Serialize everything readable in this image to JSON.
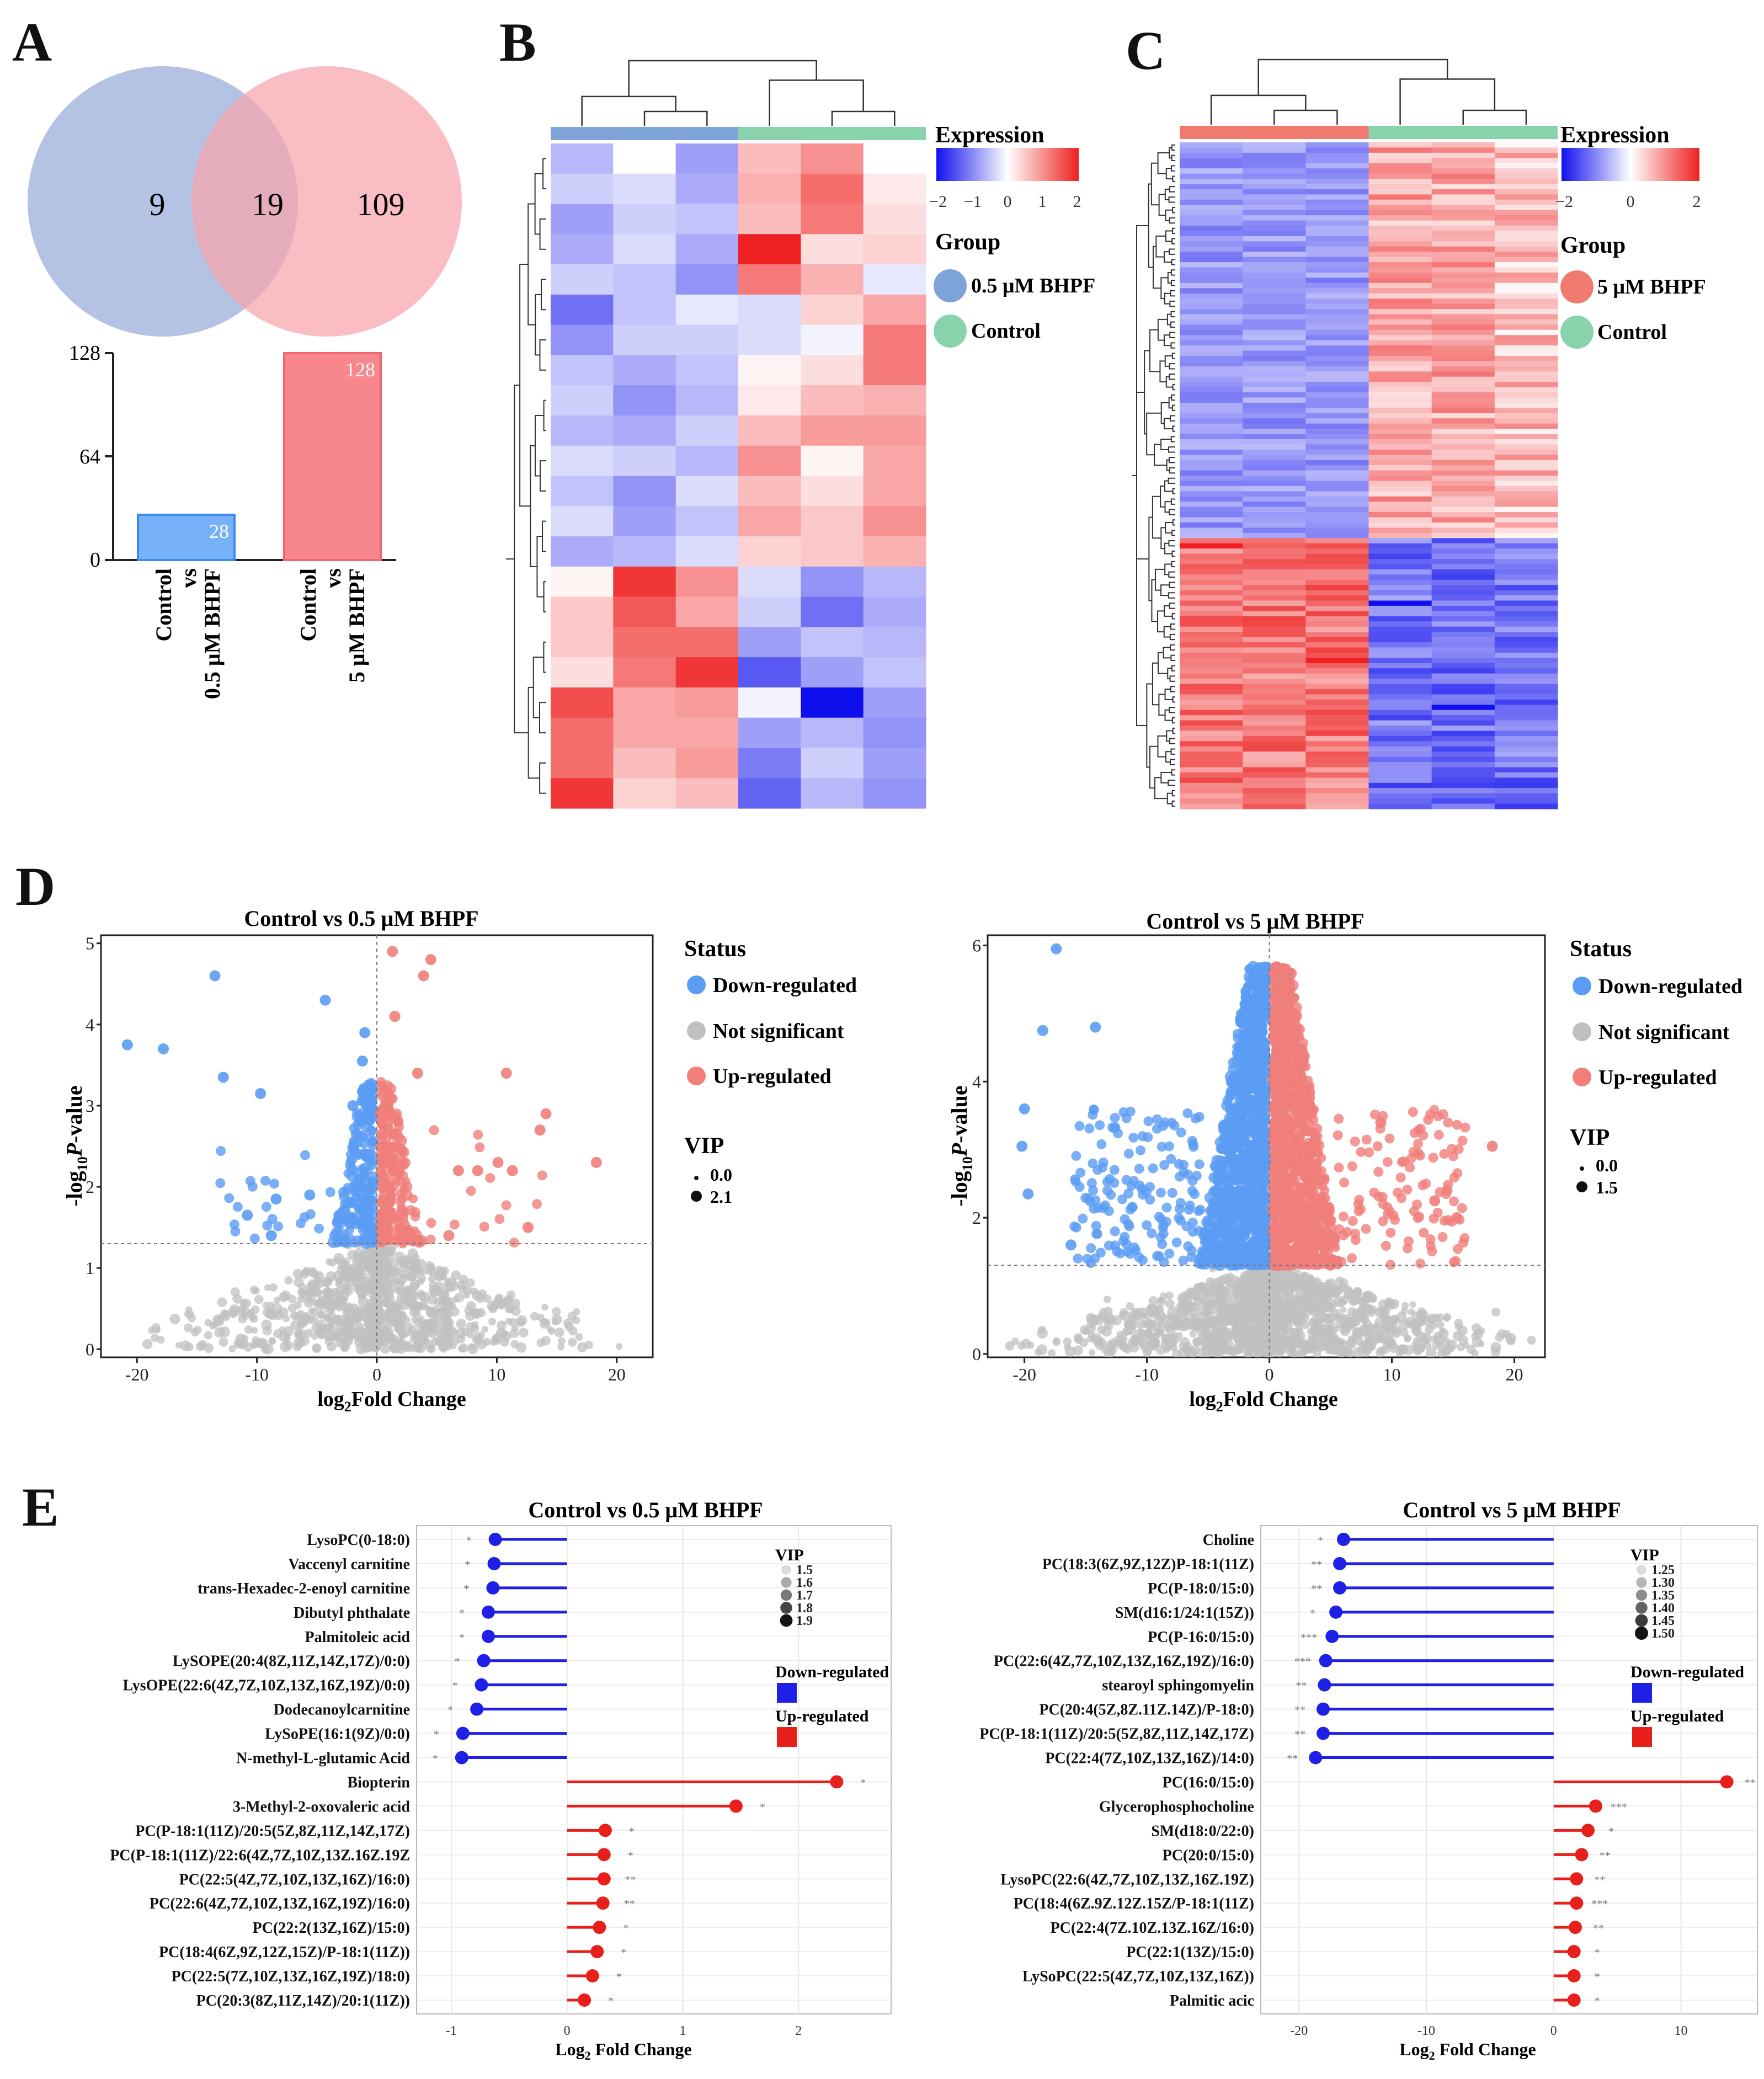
{
  "colors": {
    "blue": "#5b9cf4",
    "red": "#f07e7a",
    "grey": "#c0c0c0",
    "venn_blue": "#a7b7df",
    "venn_pink": "#f8a3ac",
    "bar_blue": "#77b1f7",
    "bar_red": "#f8878d",
    "group_blue": "#7ea3d8",
    "group_green": "#88d3ab",
    "group_red": "#f07a70",
    "lollipop_blue": "#1f20e5",
    "lollipop_red": "#e8201c"
  },
  "panel_labels": [
    "A",
    "B",
    "C",
    "D",
    "E"
  ],
  "panelA": {
    "venn": {
      "left_only": "9",
      "overlap": "19",
      "right_only": "109"
    },
    "bar": {
      "ticks": [
        "0",
        "64",
        "128"
      ],
      "max": 128,
      "bars": [
        {
          "value": 28,
          "label_text": "28",
          "cat_line1": "Control",
          "cat_line2": "vs",
          "cat_line3": "0.5 μM BHPF"
        },
        {
          "value": 128,
          "label_text": "128",
          "cat_line1": "Control",
          "cat_line2": "vs",
          "cat_line3": "5 μM BHPF"
        }
      ]
    }
  },
  "panelB": {
    "legend": {
      "expression": "Expression",
      "ticks": [
        "−2",
        "−1",
        "0",
        "1",
        "2"
      ],
      "group": "Group",
      "group1": "0.5 μM BHPF",
      "group2": "Control"
    }
  },
  "panelC": {
    "legend": {
      "expression": "Expression",
      "ticks": [
        "−2",
        "0",
        "2"
      ],
      "group": "Group",
      "group1": "5 μM BHPF",
      "group2": "Control"
    }
  },
  "panelD": {
    "left": {
      "title": "Control vs 0.5 μM BHPF",
      "xticks": [
        "-20",
        "-10",
        "0",
        "10",
        "20"
      ],
      "yticks": [
        "0",
        "1",
        "2",
        "3",
        "4",
        "5"
      ]
    },
    "right": {
      "title": "Control vs 5 μM BHPF",
      "xticks": [
        "-20",
        "-10",
        "0",
        "10",
        "20"
      ],
      "yticks": [
        "0",
        "2",
        "4",
        "6"
      ]
    },
    "xlabel_main": "log",
    "xlabel_sub": "2",
    "xlabel_rest": "Fold Change",
    "ylabel_pre": "-log",
    "ylabel_sub": "10",
    "ylabel_p": "P",
    "ylabel_rest": "-value",
    "legend_left": {
      "status": "Status",
      "down": "Down-regulated",
      "ns": "Not significant",
      "up": "Up-regulated",
      "vip": "VIP",
      "vip1": "0.0",
      "vip2": "2.1"
    },
    "legend_right": {
      "status": "Status",
      "down": "Down-regulated",
      "ns": "Not significant",
      "up": "Up-regulated",
      "vip": "VIP",
      "vip1": "0.0",
      "vip2": "1.5"
    }
  },
  "panelE": {
    "left": {
      "title": "Control vs 0.5 μM BHPF",
      "xticks": [
        "-1",
        "0",
        "1",
        "2"
      ],
      "vip_title": "VIP",
      "vip_labels": [
        "1.5",
        "1.6",
        "1.7",
        "1.8",
        "1.9"
      ],
      "down_label": "Down-regulated",
      "up_label": "Up-regulated",
      "items": [
        {
          "name": "LysoPC(0-18:0)",
          "stars": "*"
        },
        {
          "name": "Vaccenyl carnitine",
          "stars": "*"
        },
        {
          "name": "trans-Hexadec-2-enoyl carnitine",
          "stars": "*"
        },
        {
          "name": "Dibutyl phthalate",
          "stars": "*"
        },
        {
          "name": "Palmitoleic acid",
          "stars": "*"
        },
        {
          "name": "LySOPE(20:4(8Z,11Z,14Z,17Z)/0:0)",
          "stars": "*"
        },
        {
          "name": "LysOPE(22:6(4Z,7Z,10Z,13Z,16Z,19Z)/0:0)",
          "stars": "*"
        },
        {
          "name": "Dodecanoylcarnitine",
          "stars": "*"
        },
        {
          "name": "LySoPE(16:1(9Z)/0:0)",
          "stars": "*"
        },
        {
          "name": "N-methyl-L-glutamic Acid",
          "stars": "*"
        },
        {
          "name": "Biopterin",
          "stars": "*"
        },
        {
          "name": "3-Methyl-2-oxovaleric acid",
          "stars": "*"
        },
        {
          "name": "PC(P-18:1(11Z)/20:5(5Z,8Z,11Z,14Z,17Z)",
          "stars": "*"
        },
        {
          "name": "PC(P-18:1(11Z)/22:6(4Z,7Z,10Z,13Z.16Z.19Z",
          "stars": "*"
        },
        {
          "name": "PC(22:5(4Z,7Z,10Z,13Z,16Z)/16:0)",
          "stars": "**"
        },
        {
          "name": "PC(22:6(4Z,7Z,10Z,13Z,16Z,19Z)/16:0)",
          "stars": "**"
        },
        {
          "name": "PC(22:2(13Z,16Z)/15:0)",
          "stars": "*"
        },
        {
          "name": "PC(18:4(6Z,9Z,12Z,15Z)/P-18:1(11Z))",
          "stars": "*"
        },
        {
          "name": "PC(22:5(7Z,10Z,13Z,16Z,19Z)/18:0)",
          "stars": "*"
        },
        {
          "name": "PC(20:3(8Z,11Z,14Z)/20:1(11Z))",
          "stars": "*"
        }
      ]
    },
    "right": {
      "title": "Control vs 5 μM BHPF",
      "xticks": [
        "-20",
        "-10",
        "0",
        "10"
      ],
      "vip_title": "VIP",
      "vip_labels": [
        "1.25",
        "1.30",
        "1.35",
        "1.40",
        "1.45",
        "1.50"
      ],
      "down_label": "Down-regulated",
      "up_label": "Up-regulated",
      "items": [
        {
          "name": "Choline",
          "stars": "*"
        },
        {
          "name": "PC(18:3(6Z,9Z,12Z)P-18:1(11Z)",
          "stars": "**"
        },
        {
          "name": "PC(P-18:0/15:0)",
          "stars": "**"
        },
        {
          "name": "SM(d16:1/24:1(15Z))",
          "stars": "*"
        },
        {
          "name": "PC(P-16:0/15:0)",
          "stars": "***"
        },
        {
          "name": "PC(22:6(4Z,7Z,10Z,13Z,16Z,19Z)/16:0)",
          "stars": "***"
        },
        {
          "name": "stearoyl sphingomyelin",
          "stars": "**"
        },
        {
          "name": "PC(20:4(5Z,8Z.11Z.14Z)/P-18:0)",
          "stars": "**"
        },
        {
          "name": "PC(P-18:1(11Z)/20:5(5Z,8Z,11Z,14Z,17Z)",
          "stars": "**"
        },
        {
          "name": "PC(22:4(7Z,10Z,13Z,16Z)/14:0)",
          "stars": "**"
        },
        {
          "name": "PC(16:0/15:0)",
          "stars": "**"
        },
        {
          "name": "Glycerophosphocholine",
          "stars": "***"
        },
        {
          "name": "SM(d18:0/22:0)",
          "stars": "*"
        },
        {
          "name": "PC(20:0/15:0)",
          "stars": "**"
        },
        {
          "name": "LysoPC(22:6(4Z,7Z,10Z,13Z,16Z.19Z)",
          "stars": "**"
        },
        {
          "name": "PC(18:4(6Z.9Z.12Z.15Z/P-18:1(11Z)",
          "stars": "***"
        },
        {
          "name": "PC(22:4(7Z.10Z.13Z.16Z/16:0)",
          "stars": "**"
        },
        {
          "name": "PC(22:1(13Z)/15:0)",
          "stars": "*"
        },
        {
          "name": "LySoPC(22:5(4Z,7Z,10Z,13Z,16Z))",
          "stars": "*"
        },
        {
          "name": "Palmitic acic",
          "stars": "*"
        }
      ]
    },
    "xlabel_main": "Log",
    "xlabel_sub": "2",
    "xlabel_rest": " Fold Change"
  },
  "chart_data": [
    {
      "type": "bar",
      "title": "",
      "categories": [
        "Control vs 0.5 μM BHPF",
        "Control vs 5 μM BHPF"
      ],
      "values": [
        28,
        128
      ],
      "ylim": [
        0,
        128
      ]
    },
    {
      "type": "heatmap",
      "title": "Panel B",
      "columns": [
        "0.5 μM BHPF",
        "0.5 μM BHPF",
        "0.5 μM BHPF",
        "Control",
        "Control",
        "Control"
      ],
      "zlim": [
        -2,
        2
      ],
      "values": [
        [
          -0.6,
          0.0,
          -0.8,
          0.6,
          1.0,
          0.0
        ],
        [
          -0.4,
          -0.3,
          -0.7,
          0.7,
          1.3,
          0.2
        ],
        [
          -0.8,
          -0.4,
          -0.5,
          0.6,
          1.2,
          0.3
        ],
        [
          -0.7,
          -0.3,
          -0.7,
          2.0,
          0.3,
          0.4
        ],
        [
          -0.4,
          -0.5,
          -0.9,
          1.2,
          0.7,
          -0.2
        ],
        [
          -1.2,
          -0.5,
          -0.2,
          -0.3,
          0.4,
          0.8
        ],
        [
          -0.9,
          -0.4,
          -0.4,
          -0.3,
          -0.1,
          1.2
        ],
        [
          -0.5,
          -0.7,
          -0.5,
          0.1,
          0.3,
          1.2
        ],
        [
          -0.4,
          -0.9,
          -0.6,
          0.2,
          0.6,
          0.7
        ],
        [
          -0.6,
          -0.7,
          -0.4,
          0.6,
          0.9,
          0.9
        ],
        [
          -0.3,
          -0.4,
          -0.6,
          1.0,
          0.1,
          0.8
        ],
        [
          -0.5,
          -0.9,
          -0.3,
          0.6,
          0.3,
          0.8
        ],
        [
          -0.3,
          -0.8,
          -0.5,
          0.8,
          0.5,
          1.0
        ],
        [
          -0.7,
          -0.6,
          -0.3,
          0.4,
          0.5,
          0.7
        ],
        [
          0.1,
          1.8,
          1.0,
          -0.3,
          -0.9,
          -0.6
        ],
        [
          0.5,
          1.5,
          0.8,
          -0.4,
          -1.2,
          -0.7
        ],
        [
          0.5,
          1.3,
          1.3,
          -0.8,
          -0.5,
          -0.6
        ],
        [
          0.3,
          1.2,
          1.8,
          -1.4,
          -0.8,
          -0.5
        ],
        [
          1.6,
          0.8,
          0.9,
          -0.1,
          -2.0,
          -0.8
        ],
        [
          1.3,
          0.8,
          0.8,
          -0.8,
          -0.6,
          -0.9
        ],
        [
          1.3,
          0.6,
          0.9,
          -1.1,
          -0.4,
          -0.8
        ],
        [
          1.8,
          0.4,
          0.6,
          -1.3,
          -0.6,
          -0.9
        ]
      ]
    },
    {
      "type": "heatmap",
      "title": "Panel C",
      "columns": [
        "5 μM BHPF",
        "5 μM BHPF",
        "5 μM BHPF",
        "Control",
        "Control",
        "Control"
      ],
      "zlim": [
        -2,
        2
      ],
      "rows": 128,
      "pattern": "first 76 rows: 5 μM BHPF low (-0.6 to -1.0), Control high (0.4 to 1.2); last 52 rows: 5 μM BHPF high (0.8 to 1.6), Control low (-0.8 to -1.6)"
    },
    {
      "type": "scatter",
      "title": "Control vs 0.5 μM BHPF",
      "xlabel": "log2Fold Change",
      "ylabel": "-log10P-value",
      "xlim": [
        -23,
        23
      ],
      "ylim": [
        -0.1,
        5.1
      ],
      "threshold": 1.3,
      "highlighted_down": [
        [
          -20.8,
          3.75
        ],
        [
          -17.8,
          3.7
        ],
        [
          -13.5,
          4.6
        ],
        [
          -12.8,
          3.35
        ],
        [
          -9.7,
          3.15
        ],
        [
          -10.8,
          1.65
        ],
        [
          -8.4,
          1.85
        ],
        [
          -8.8,
          1.4
        ],
        [
          -4.3,
          4.3
        ],
        [
          -5.6,
          1.9
        ],
        [
          -1.0,
          3.9
        ],
        [
          -1.2,
          3.55
        ],
        [
          -2.0,
          3.0
        ]
      ],
      "highlighted_up": [
        [
          1.3,
          4.9
        ],
        [
          4.5,
          4.8
        ],
        [
          3.9,
          4.6
        ],
        [
          1.5,
          4.1
        ],
        [
          3.4,
          3.4
        ],
        [
          10.8,
          3.4
        ],
        [
          14.1,
          2.9
        ],
        [
          13.6,
          2.7
        ],
        [
          18.3,
          2.3
        ],
        [
          6.8,
          2.2
        ],
        [
          8.4,
          2.2
        ],
        [
          10.1,
          2.3
        ],
        [
          11.3,
          2.2
        ],
        [
          12.6,
          1.5
        ],
        [
          6.0,
          1.4
        ]
      ]
    },
    {
      "type": "scatter",
      "title": "Control vs 5 μM BHPF",
      "xlabel": "log2Fold Change",
      "ylabel": "-log10P-value",
      "xlim": [
        -23,
        22.5
      ],
      "ylim": [
        -0.05,
        6.15
      ],
      "threshold": 1.3,
      "highlighted_down": [
        [
          -17.4,
          5.95
        ],
        [
          -18.5,
          4.75
        ],
        [
          -14.2,
          4.8
        ],
        [
          -20.0,
          3.6
        ],
        [
          -20.2,
          3.05
        ],
        [
          -19.7,
          2.35
        ],
        [
          -16.2,
          1.6
        ]
      ],
      "highlighted_up": [
        [
          18.2,
          3.05
        ],
        [
          9.1,
          3.4
        ],
        [
          15.3,
          2.0
        ],
        [
          13.5,
          2.25
        ],
        [
          14.5,
          2.4
        ]
      ]
    },
    {
      "type": "bar",
      "orientation": "horizontal",
      "title": "Control vs 0.5 μM BHPF",
      "xlabel": "Log2 Fold Change",
      "xlim": [
        -1.3,
        2.8
      ],
      "categories": [
        "LysoPC(0-18:0)",
        "Vaccenyl carnitine",
        "trans-Hexadec-2-enoyl carnitine",
        "Dibutyl phthalate",
        "Palmitoleic acid",
        "LySOPE(20:4(8Z,11Z,14Z,17Z)/0:0)",
        "LysOPE(22:6(4Z,7Z,10Z,13Z,16Z,19Z)/0:0)",
        "Dodecanoylcarnitine",
        "LySoPE(16:1(9Z)/0:0)",
        "N-methyl-L-glutamic Acid",
        "Biopterin",
        "3-Methyl-2-oxovaleric acid",
        "PC(P-18:1(11Z)/20:5(5Z,8Z,11Z,14Z,17Z)",
        "PC(P-18:1(11Z)/22:6(4Z,7Z,10Z,13Z.16Z.19Z",
        "PC(22:5(4Z,7Z,10Z,13Z,16Z)/16:0)",
        "PC(22:6(4Z,7Z,10Z,13Z,16Z,19Z)/16:0)",
        "PC(22:2(13Z,16Z)/15:0)",
        "PC(18:4(6Z,9Z,12Z,15Z)/P-18:1(11Z))",
        "PC(22:5(7Z,10Z,13Z,16Z,19Z)/18:0)",
        "PC(20:3(8Z,11Z,14Z)/20:1(11Z))"
      ],
      "values": [
        -0.62,
        -0.63,
        -0.64,
        -0.68,
        -0.68,
        -0.72,
        -0.74,
        -0.78,
        -0.9,
        -0.91,
        2.33,
        1.46,
        0.33,
        0.32,
        0.32,
        0.31,
        0.28,
        0.26,
        0.22,
        0.15
      ],
      "vip": [
        1.7,
        1.6,
        1.6,
        1.6,
        1.6,
        1.6,
        1.6,
        1.6,
        1.6,
        1.6,
        1.5,
        1.6,
        1.9,
        1.8,
        1.8,
        1.8,
        1.7,
        1.7,
        1.7,
        1.7
      ]
    },
    {
      "type": "bar",
      "orientation": "horizontal",
      "title": "Control vs 5 μM BHPF",
      "xlabel": "Log2 Fold Change",
      "xlim": [
        -23,
        16
      ],
      "categories": [
        "Choline",
        "PC(18:3(6Z,9Z,12Z)P-18:1(11Z)",
        "PC(P-18:0/15:0)",
        "SM(d16:1/24:1(15Z))",
        "PC(P-16:0/15:0)",
        "PC(22:6(4Z,7Z,10Z,13Z,16Z,19Z)/16:0)",
        "stearoyl sphingomyelin",
        "PC(20:4(5Z,8Z.11Z.14Z)/P-18:0)",
        "PC(P-18:1(11Z)/20:5(5Z,8Z,11Z,14Z,17Z)",
        "PC(22:4(7Z,10Z,13Z,16Z)/14:0)",
        "PC(16:0/15:0)",
        "Glycerophosphocholine",
        "SM(d18:0/22:0)",
        "PC(20:0/15:0)",
        "LysoPC(22:6(4Z,7Z,10Z,13Z,16Z.19Z)",
        "PC(18:4(6Z.9Z.12Z.15Z/P-18:1(11Z)",
        "PC(22:4(7Z.10Z.13Z.16Z/16:0)",
        "PC(22:1(13Z)/15:0)",
        "LySoPC(22:5(4Z,7Z,10Z,13Z,16Z))",
        "Palmitic acic"
      ],
      "values": [
        -16.5,
        -16.8,
        -16.8,
        -17.1,
        -17.4,
        -17.9,
        -18.0,
        -18.1,
        -18.1,
        -18.7,
        13.6,
        3.3,
        2.7,
        2.2,
        1.8,
        1.8,
        1.7,
        1.6,
        1.6,
        1.6
      ],
      "vip": [
        1.45,
        1.45,
        1.45,
        1.45,
        1.45,
        1.45,
        1.45,
        1.45,
        1.45,
        1.45,
        1.35,
        1.45,
        1.3,
        1.45,
        1.45,
        1.45,
        1.45,
        1.4,
        1.45,
        1.4
      ]
    }
  ]
}
